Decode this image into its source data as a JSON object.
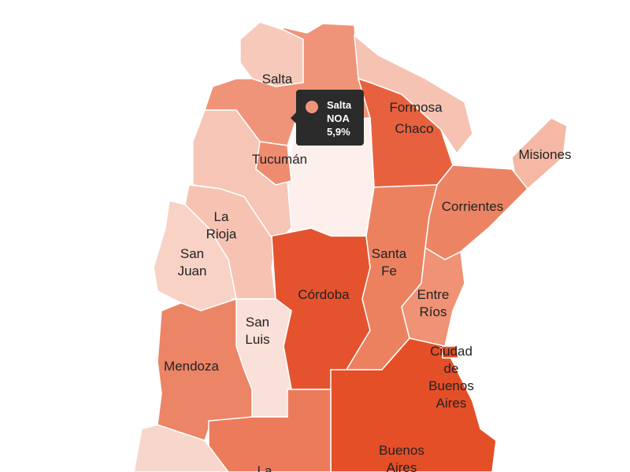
{
  "map": {
    "provinces": [
      {
        "id": "jujuy",
        "label": [],
        "color": "#f6c9bb"
      },
      {
        "id": "salta",
        "label": [
          "Salta"
        ],
        "color": "#ef9478"
      },
      {
        "id": "formosa",
        "label": [
          "Formosa"
        ],
        "color": "#f6c2b1"
      },
      {
        "id": "chaco",
        "label": [
          "Chaco"
        ],
        "color": "#e8613e"
      },
      {
        "id": "misiones",
        "label": [
          "Misiones"
        ],
        "color": "#f5b8a4"
      },
      {
        "id": "corrientes",
        "label": [
          "Corrientes"
        ],
        "color": "#ec8464"
      },
      {
        "id": "santiago-del-estero",
        "label": [],
        "color": "#fdf0ec"
      },
      {
        "id": "catamarca",
        "label": [],
        "color": "#f6c5b5"
      },
      {
        "id": "tucuman",
        "label": [
          "Tucumán"
        ],
        "color": "#ee8c6f"
      },
      {
        "id": "la-rioja",
        "label": [
          "La",
          "Rioja"
        ],
        "color": "#f6c3b3"
      },
      {
        "id": "san-juan",
        "label": [
          "San",
          "Juan"
        ],
        "color": "#f7d2c5"
      },
      {
        "id": "cordoba",
        "label": [
          "Córdoba"
        ],
        "color": "#e4532e"
      },
      {
        "id": "santa-fe",
        "label": [
          "Santa",
          "Fe"
        ],
        "color": "#ec8160"
      },
      {
        "id": "entre-rios",
        "label": [
          "Entre",
          "Ríos"
        ],
        "color": "#ef9275"
      },
      {
        "id": "san-luis",
        "label": [
          "San",
          "Luis"
        ],
        "color": "#f9e0d8"
      },
      {
        "id": "mendoza",
        "label": [
          "Mendoza"
        ],
        "color": "#ec8466"
      },
      {
        "id": "buenos-aires",
        "label": [
          "Buenos",
          "Aires"
        ],
        "color": "#e44f28"
      },
      {
        "id": "caba",
        "label": [
          "Ciudad",
          "de",
          "Buenos",
          "Aires"
        ],
        "color": "#e44f28"
      },
      {
        "id": "la-pampa",
        "label": [
          "La"
        ],
        "color": "#ec7b5c"
      },
      {
        "id": "neuquen",
        "label": [],
        "color": "#f7d6cb"
      }
    ]
  },
  "tooltip": {
    "province": "Salta",
    "region": "NOA",
    "value": "5,9%",
    "color": "#ef9478"
  }
}
